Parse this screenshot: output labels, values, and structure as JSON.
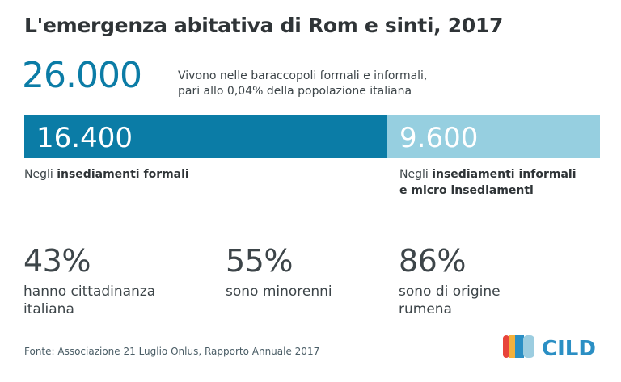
{
  "title": "L'emergenza abitativa di Rom e sinti, 2017",
  "total": {
    "value": "26.000",
    "description_line1": "Vivono nelle baraccopoli formali e informali,",
    "description_line2": "pari allo 0,04% della popolazione italiana"
  },
  "chart_data": {
    "type": "bar",
    "title": "L'emergenza abitativa di Rom e sinti, 2017",
    "total": 26000,
    "categories": [
      "insediamenti formali",
      "insediamenti informali e micro insediamenti"
    ],
    "values": [
      16400,
      9600
    ],
    "value_labels": [
      "16.400",
      "9.600"
    ],
    "colors": [
      "#0b7ca6",
      "#96cfe0"
    ],
    "stacked": true,
    "orientation": "horizontal"
  },
  "segments": [
    {
      "prefix": "Negli ",
      "bold": "insediamenti formali",
      "bold2": ""
    },
    {
      "prefix": "Negli ",
      "bold": "insediamenti informali",
      "bold2": "e micro insediamenti"
    }
  ],
  "stats": [
    {
      "value": "43%",
      "label_line1": "hanno cittadinanza",
      "label_line2": "italiana"
    },
    {
      "value": "55%",
      "label_line1": "sono minorenni",
      "label_line2": ""
    },
    {
      "value": "86%",
      "label_line1": "sono di origine",
      "label_line2": "rumena"
    }
  ],
  "source": "Fonte: Associazione 21 Luglio Onlus, Rapporto Annuale 2017",
  "logo": {
    "text": "CILD",
    "stripe_colors": [
      "#e8443a",
      "#f3b13c",
      "#2b8fc4",
      "#9ccde0"
    ]
  }
}
